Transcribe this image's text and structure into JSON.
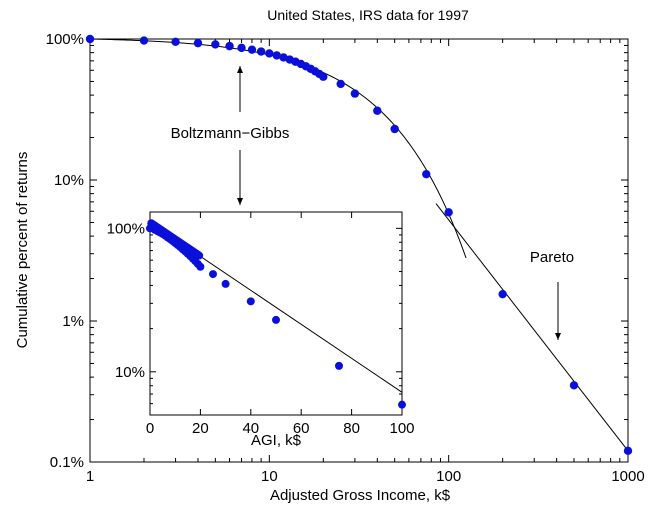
{
  "chart_data": {
    "type": "scatter",
    "title": "United States, IRS data for 1997",
    "xlabel": "Adjusted Gross Income, k$",
    "ylabel": "Cumulative percent of returns",
    "xscale": "log",
    "yscale": "log",
    "xlim": [
      1,
      1000
    ],
    "ylim_percent": [
      0.1,
      100
    ],
    "xtick_values": [
      1,
      10,
      100,
      1000
    ],
    "xtick_labels": [
      "1",
      "10",
      "100",
      "1000"
    ],
    "ytick_values": [
      0.1,
      1,
      10,
      100
    ],
    "ytick_labels": [
      "0.1%",
      "1%",
      "10%",
      "100%"
    ],
    "series": [
      {
        "x": [
          1,
          2,
          3,
          4,
          5,
          6,
          7,
          8,
          9,
          10,
          11,
          12,
          13,
          14,
          15,
          16,
          17,
          18,
          19,
          20,
          25,
          30,
          40,
          50,
          75,
          100,
          200,
          500,
          1000
        ],
        "y_percent": [
          100,
          97.5,
          95.5,
          93.5,
          91.5,
          89,
          86.5,
          84,
          81.5,
          79,
          76.5,
          74,
          71.5,
          69,
          66.5,
          64,
          61.5,
          59,
          56.5,
          54,
          48,
          41,
          31,
          23,
          11,
          5.9,
          1.55,
          0.35,
          0.12
        ]
      }
    ],
    "fit_exponential": {
      "x": [
        1,
        125
      ],
      "y_percent": [
        100,
        2.8
      ]
    },
    "fit_power_law": {
      "x": [
        85,
        1000
      ],
      "y_percent": [
        6.8,
        0.12
      ]
    },
    "annotations": [
      {
        "text": "Boltzmann−Gibbs"
      },
      {
        "text": "Pareto"
      }
    ],
    "inset": {
      "type": "scatter",
      "xlabel": "AGI, k$",
      "xscale": "linear",
      "yscale": "log",
      "xlim": [
        0,
        100
      ],
      "ylim_percent": [
        5,
        130
      ],
      "xtick_values": [
        0,
        20,
        40,
        60,
        80,
        100
      ],
      "xtick_labels": [
        "0",
        "20",
        "40",
        "60",
        "80",
        "100"
      ],
      "ytick_values": [
        10,
        100
      ],
      "ytick_labels": [
        "10%",
        "100%"
      ],
      "line": {
        "x": [
          0,
          100
        ],
        "y_percent": [
          110,
          7.2
        ]
      }
    },
    "colors": {
      "marker": "#0a10d9",
      "line": "#000000"
    }
  }
}
